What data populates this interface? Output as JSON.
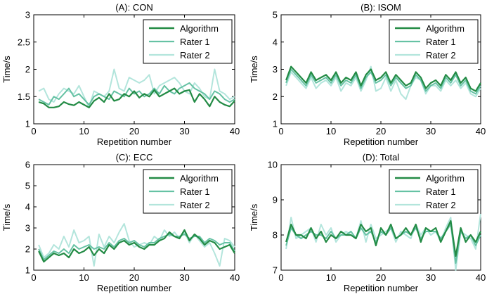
{
  "chart_data": [
    {
      "type": "line",
      "title": "(A): CON",
      "xlabel": "Repetition number",
      "ylabel": "Time/s",
      "xlim": [
        0,
        40
      ],
      "ylim": [
        1,
        3
      ],
      "xticks": [
        0,
        10,
        20,
        30,
        40
      ],
      "yticks": [
        1,
        1.5,
        2,
        2.5,
        3
      ],
      "legend_position": "top-right",
      "series": [
        {
          "name": "Algorithm",
          "values": [
            1.4,
            1.37,
            1.3,
            1.3,
            1.32,
            1.4,
            1.36,
            1.34,
            1.4,
            1.35,
            1.3,
            1.42,
            1.48,
            1.4,
            1.55,
            1.42,
            1.45,
            1.55,
            1.5,
            1.6,
            1.48,
            1.55,
            1.5,
            1.62,
            1.5,
            1.55,
            1.6,
            1.65,
            1.55,
            1.6,
            1.62,
            1.4,
            1.55,
            1.45,
            1.32,
            1.5,
            1.4,
            1.35,
            1.32,
            1.42
          ]
        },
        {
          "name": "Rater 1",
          "values": [
            1.45,
            1.4,
            1.35,
            1.5,
            1.45,
            1.55,
            1.65,
            1.5,
            1.55,
            1.45,
            1.35,
            1.5,
            1.55,
            1.5,
            1.45,
            1.6,
            1.55,
            1.5,
            1.65,
            1.55,
            1.6,
            1.5,
            1.55,
            1.65,
            1.55,
            1.7,
            1.6,
            1.55,
            1.65,
            1.7,
            1.75,
            1.65,
            1.6,
            1.55,
            1.45,
            1.6,
            1.55,
            1.45,
            1.4,
            1.45
          ]
        },
        {
          "name": "Rater 2",
          "values": [
            1.6,
            1.65,
            1.45,
            1.4,
            1.55,
            1.65,
            1.6,
            1.55,
            1.7,
            1.5,
            1.3,
            1.6,
            1.55,
            1.5,
            1.6,
            2.0,
            1.65,
            1.6,
            1.85,
            1.8,
            1.75,
            1.8,
            1.9,
            1.55,
            1.7,
            1.75,
            1.8,
            1.85,
            1.75,
            1.6,
            1.55,
            1.75,
            1.65,
            1.5,
            1.45,
            2.0,
            1.6,
            1.55,
            1.45,
            1.5
          ]
        }
      ]
    },
    {
      "type": "line",
      "title": "(B): ISOM",
      "xlabel": "Repetition number",
      "ylabel": "Time/s",
      "xlim": [
        0,
        40
      ],
      "ylim": [
        1,
        5
      ],
      "xticks": [
        0,
        10,
        20,
        30,
        40
      ],
      "yticks": [
        1,
        2,
        3,
        4,
        5
      ],
      "legend_position": "top-right",
      "series": [
        {
          "name": "Algorithm",
          "values": [
            2.6,
            3.1,
            2.9,
            2.7,
            2.5,
            2.9,
            2.6,
            2.7,
            2.8,
            2.6,
            2.9,
            2.5,
            2.7,
            2.6,
            2.9,
            2.4,
            2.8,
            3.0,
            2.6,
            2.7,
            2.9,
            2.5,
            2.8,
            2.6,
            2.4,
            2.5,
            2.9,
            2.7,
            2.3,
            2.5,
            2.6,
            2.4,
            2.8,
            2.6,
            2.9,
            2.5,
            2.7,
            2.3,
            2.2,
            2.5
          ]
        },
        {
          "name": "Rater 1",
          "values": [
            2.5,
            3.0,
            2.8,
            2.6,
            2.4,
            2.8,
            2.5,
            2.6,
            2.7,
            2.5,
            2.8,
            2.4,
            2.6,
            2.5,
            2.8,
            2.3,
            2.7,
            2.9,
            2.5,
            2.6,
            2.8,
            2.4,
            2.7,
            2.5,
            2.3,
            2.4,
            2.8,
            2.6,
            2.2,
            2.4,
            2.5,
            2.3,
            2.7,
            2.5,
            2.8,
            2.4,
            2.6,
            2.2,
            2.1,
            2.4
          ]
        },
        {
          "name": "Rater 2",
          "values": [
            2.4,
            2.9,
            2.7,
            2.5,
            2.3,
            2.7,
            2.3,
            2.5,
            2.6,
            2.4,
            2.7,
            2.2,
            2.5,
            2.4,
            2.7,
            2.2,
            2.6,
            3.1,
            2.2,
            2.3,
            2.7,
            2.2,
            2.6,
            2.1,
            1.9,
            2.4,
            2.7,
            2.6,
            2.1,
            2.4,
            2.4,
            2.2,
            2.6,
            2.4,
            2.6,
            2.3,
            2.5,
            2.1,
            2.0,
            2.3
          ]
        }
      ]
    },
    {
      "type": "line",
      "title": "(C): ECC",
      "xlabel": "Repetition number",
      "ylabel": "Time/s",
      "xlim": [
        0,
        40
      ],
      "ylim": [
        1,
        6
      ],
      "xticks": [
        0,
        10,
        20,
        30,
        40
      ],
      "yticks": [
        1,
        2,
        3,
        4,
        5,
        6
      ],
      "legend_position": "top-right",
      "series": [
        {
          "name": "Algorithm",
          "values": [
            1.9,
            1.4,
            1.6,
            1.8,
            1.7,
            1.8,
            1.6,
            2.0,
            1.8,
            1.9,
            2.1,
            1.7,
            2.0,
            1.8,
            2.2,
            2.0,
            2.3,
            2.4,
            2.2,
            2.3,
            2.1,
            2.0,
            2.2,
            2.2,
            2.4,
            2.5,
            2.8,
            2.6,
            2.5,
            2.9,
            2.4,
            2.7,
            2.5,
            2.2,
            2.4,
            2.3,
            2.0,
            2.1,
            2.2,
            1.8
          ]
        },
        {
          "name": "Rater 1",
          "values": [
            2.0,
            1.5,
            1.7,
            1.9,
            1.8,
            2.0,
            1.8,
            2.2,
            2.0,
            2.1,
            2.2,
            2.0,
            2.1,
            2.0,
            2.3,
            2.1,
            2.4,
            2.5,
            2.3,
            2.4,
            2.2,
            2.1,
            2.3,
            2.3,
            2.5,
            2.6,
            2.7,
            2.6,
            2.6,
            2.7,
            2.5,
            2.6,
            2.6,
            2.3,
            2.5,
            2.4,
            2.2,
            2.3,
            2.3,
            1.9
          ]
        },
        {
          "name": "Rater 2",
          "values": [
            2.2,
            1.6,
            1.8,
            2.2,
            2.0,
            2.6,
            2.1,
            2.9,
            2.3,
            2.4,
            2.6,
            1.2,
            2.7,
            2.1,
            2.6,
            2.3,
            2.8,
            3.2,
            2.4,
            2.1,
            2.2,
            2.3,
            2.2,
            2.6,
            2.4,
            2.9,
            2.6,
            2.8,
            2.5,
            2.8,
            2.3,
            2.7,
            2.4,
            2.1,
            2.3,
            1.8,
            1.2,
            2.5,
            2.4,
            2.1
          ]
        }
      ]
    },
    {
      "type": "line",
      "title": "(D): Total",
      "xlabel": "Repetition number",
      "ylabel": "Time/s",
      "xlim": [
        0,
        40
      ],
      "ylim": [
        7,
        10
      ],
      "xticks": [
        0,
        10,
        20,
        30,
        40
      ],
      "yticks": [
        7,
        8,
        9,
        10
      ],
      "legend_position": "top-right",
      "series": [
        {
          "name": "Algorithm",
          "values": [
            7.8,
            8.3,
            8.0,
            8.0,
            7.9,
            8.2,
            7.9,
            8.1,
            7.8,
            8.0,
            7.9,
            8.1,
            8.0,
            8.0,
            7.9,
            8.3,
            8.1,
            8.2,
            7.7,
            8.2,
            8.0,
            8.3,
            7.9,
            8.0,
            8.2,
            8.0,
            8.3,
            7.8,
            8.2,
            8.1,
            8.2,
            7.8,
            8.1,
            8.4,
            7.4,
            8.2,
            7.8,
            8.0,
            7.8,
            8.1
          ]
        },
        {
          "name": "Rater 1",
          "values": [
            7.7,
            8.2,
            8.0,
            7.9,
            8.0,
            8.1,
            8.0,
            8.0,
            7.9,
            8.1,
            7.9,
            8.0,
            8.0,
            8.1,
            7.9,
            8.2,
            8.0,
            8.1,
            7.8,
            8.1,
            8.0,
            8.2,
            7.9,
            8.0,
            8.1,
            8.0,
            8.2,
            7.9,
            8.1,
            8.1,
            8.1,
            7.9,
            8.1,
            8.3,
            7.2,
            8.1,
            7.9,
            8.0,
            7.7,
            8.0
          ]
        },
        {
          "name": "Rater 2",
          "values": [
            7.6,
            8.5,
            7.9,
            8.0,
            8.1,
            8.2,
            7.8,
            8.3,
            8.0,
            8.2,
            7.8,
            8.0,
            8.1,
            8.0,
            7.9,
            8.4,
            7.8,
            8.3,
            7.9,
            8.0,
            8.1,
            8.2,
            7.8,
            8.1,
            8.0,
            7.9,
            8.3,
            8.0,
            8.2,
            8.0,
            8.1,
            7.8,
            8.2,
            8.5,
            7.0,
            8.1,
            8.0,
            7.9,
            7.6,
            8.6
          ]
        }
      ]
    }
  ],
  "colors": {
    "Algorithm": "#238b45",
    "Rater 1": "#66c2a4",
    "Rater 2": "#b3e5dc"
  }
}
